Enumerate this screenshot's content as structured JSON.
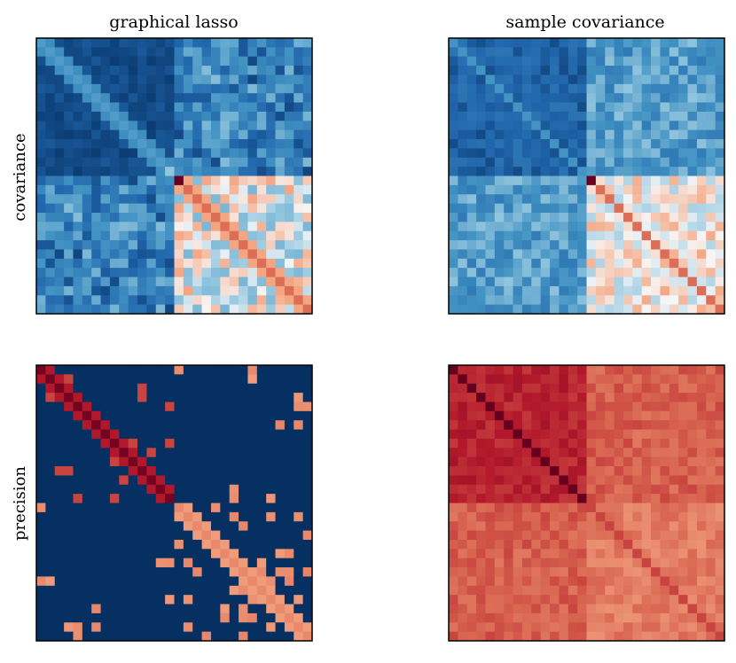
{
  "chart_data": {
    "type": "heatmap",
    "layout": "2x2 grid",
    "column_titles": [
      "graphical lasso",
      "sample covariance"
    ],
    "row_titles": [
      "covariance",
      "precision"
    ],
    "matrix_size": 30,
    "block_size": 15,
    "colormap": "RdBu_r (blue = low, white = mid, red = high)",
    "colors": {
      "dark_blue": "#053061",
      "blue": "#2166ac",
      "light_blue": "#92c5de",
      "white": "#f7f7f7",
      "light_red": "#f4a582",
      "red": "#b2182b",
      "dark_red": "#67001f",
      "frame": "#000000"
    },
    "panels": [
      {
        "row": "covariance",
        "column": "graphical lasso",
        "description": "Two 15x15 blocks; strong light diagonal bands, dark-red peak at entry (15,15), lower-right block reddish diagonal",
        "value_scale": "normalized 0-1 color intensity",
        "features": {
          "upper_left_block": "uniform dark blue with light diagonal",
          "off_diagonal_blocks": "mixed blue/light blue noise",
          "lower_right_block": "pale/white with red diagonal"
        }
      },
      {
        "row": "covariance",
        "column": "sample covariance",
        "description": "Dark blue upper-left block, light blue off-diagonal blocks, pale lower-right block with red diagonal",
        "value_scale": "normalized 0-1 color intensity"
      },
      {
        "row": "precision",
        "column": "graphical lasso",
        "description": "Sparse precision: dark blue background, red band along the main diagonal (darker in first block), scattered salmon off-diagonal entries",
        "value_scale": "normalized 0-1 color intensity"
      },
      {
        "row": "precision",
        "column": "sample covariance",
        "description": "Dense precision: entirely red-toned, upper-left block deepest red with dark diagonal, other blocks lighter red",
        "value_scale": "normalized 0-1 color intensity"
      }
    ]
  }
}
